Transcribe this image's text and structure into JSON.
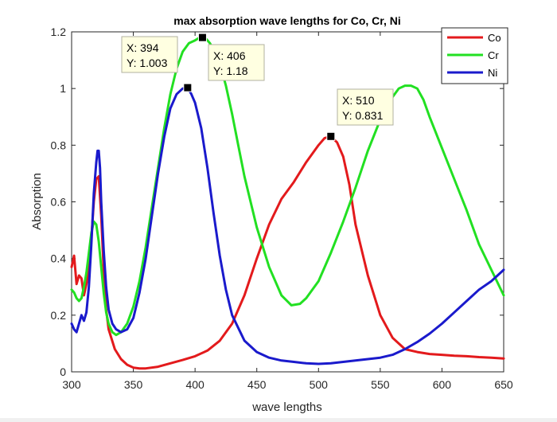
{
  "chart_data": {
    "type": "line",
    "title": "max absorption wave lengths for Co, Cr, Ni",
    "xlabel": "wave lengths",
    "ylabel": "Absorption",
    "xlim": [
      300,
      650
    ],
    "ylim": [
      0,
      1.2
    ],
    "xticks": [
      300,
      350,
      400,
      450,
      500,
      550,
      600,
      650
    ],
    "xtick_labels": [
      "300",
      "350",
      "400",
      "450",
      "500",
      "550",
      "600",
      "650"
    ],
    "yticks": [
      0,
      0.2,
      0.4,
      0.6,
      0.8,
      1.0,
      1.2
    ],
    "ytick_labels": [
      "0",
      "0.2",
      "0.4",
      "0.6",
      "0.8",
      "1",
      "1.2"
    ],
    "grid": false,
    "legend_position": "top-right",
    "series": [
      {
        "name": "Co",
        "color": "#e31a1c",
        "x": [
          300,
          302,
          304,
          306,
          308,
          310,
          312,
          314,
          316,
          318,
          320,
          322,
          324,
          326,
          328,
          330,
          335,
          340,
          345,
          350,
          355,
          360,
          370,
          380,
          390,
          400,
          410,
          420,
          430,
          440,
          450,
          460,
          470,
          480,
          490,
          500,
          505,
          510,
          515,
          520,
          525,
          530,
          540,
          550,
          560,
          570,
          580,
          590,
          600,
          610,
          620,
          630,
          640,
          650
        ],
        "y": [
          0.37,
          0.41,
          0.31,
          0.34,
          0.33,
          0.27,
          0.31,
          0.36,
          0.47,
          0.6,
          0.68,
          0.69,
          0.55,
          0.36,
          0.22,
          0.15,
          0.08,
          0.045,
          0.025,
          0.015,
          0.012,
          0.012,
          0.018,
          0.03,
          0.042,
          0.055,
          0.075,
          0.11,
          0.17,
          0.27,
          0.4,
          0.52,
          0.61,
          0.67,
          0.74,
          0.8,
          0.825,
          0.831,
          0.81,
          0.76,
          0.66,
          0.52,
          0.34,
          0.2,
          0.12,
          0.08,
          0.07,
          0.063,
          0.06,
          0.057,
          0.055,
          0.052,
          0.05,
          0.047
        ]
      },
      {
        "name": "Cr",
        "color": "#22e022",
        "x": [
          300,
          302,
          304,
          306,
          308,
          310,
          312,
          314,
          316,
          318,
          320,
          322,
          324,
          326,
          328,
          330,
          333,
          336,
          340,
          345,
          350,
          355,
          360,
          365,
          370,
          375,
          380,
          385,
          390,
          395,
          400,
          403,
          406,
          409,
          412,
          416,
          420,
          425,
          430,
          435,
          440,
          450,
          460,
          470,
          478,
          485,
          490,
          500,
          510,
          520,
          530,
          540,
          550,
          560,
          565,
          570,
          575,
          580,
          585,
          590,
          600,
          610,
          620,
          630,
          640,
          650
        ],
        "y": [
          0.29,
          0.28,
          0.26,
          0.25,
          0.26,
          0.3,
          0.35,
          0.42,
          0.49,
          0.53,
          0.52,
          0.46,
          0.37,
          0.28,
          0.21,
          0.17,
          0.14,
          0.13,
          0.14,
          0.17,
          0.23,
          0.32,
          0.44,
          0.58,
          0.72,
          0.86,
          0.98,
          1.07,
          1.13,
          1.16,
          1.17,
          1.178,
          1.18,
          1.175,
          1.16,
          1.13,
          1.09,
          1.01,
          0.91,
          0.8,
          0.69,
          0.51,
          0.37,
          0.27,
          0.235,
          0.24,
          0.26,
          0.32,
          0.42,
          0.53,
          0.65,
          0.78,
          0.89,
          0.97,
          1.0,
          1.01,
          1.01,
          1.0,
          0.96,
          0.9,
          0.79,
          0.68,
          0.57,
          0.45,
          0.36,
          0.27
        ]
      },
      {
        "name": "Ni",
        "color": "#1a1acc",
        "x": [
          300,
          302,
          304,
          306,
          308,
          310,
          312,
          314,
          316,
          318,
          320,
          321,
          322,
          323,
          324,
          326,
          328,
          330,
          333,
          336,
          340,
          345,
          350,
          355,
          360,
          365,
          370,
          375,
          380,
          385,
          390,
          394,
          397,
          400,
          405,
          410,
          415,
          420,
          425,
          430,
          440,
          450,
          460,
          470,
          480,
          490,
          500,
          510,
          520,
          530,
          540,
          550,
          560,
          570,
          580,
          590,
          600,
          610,
          620,
          630,
          640,
          650
        ],
        "y": [
          0.17,
          0.15,
          0.14,
          0.17,
          0.2,
          0.18,
          0.21,
          0.3,
          0.45,
          0.63,
          0.74,
          0.78,
          0.78,
          0.72,
          0.6,
          0.43,
          0.3,
          0.22,
          0.17,
          0.15,
          0.14,
          0.15,
          0.19,
          0.28,
          0.4,
          0.55,
          0.7,
          0.83,
          0.93,
          0.98,
          1.0,
          1.003,
          0.98,
          0.95,
          0.86,
          0.72,
          0.56,
          0.41,
          0.29,
          0.2,
          0.11,
          0.07,
          0.05,
          0.04,
          0.035,
          0.03,
          0.028,
          0.03,
          0.035,
          0.04,
          0.045,
          0.05,
          0.06,
          0.08,
          0.105,
          0.135,
          0.17,
          0.21,
          0.25,
          0.29,
          0.32,
          0.36
        ]
      }
    ],
    "annotations": [
      {
        "x": 394,
        "y": 1.003,
        "line1": "X: 394",
        "line2": "Y: 1.003"
      },
      {
        "x": 406,
        "y": 1.18,
        "line1": "X: 406",
        "line2": "Y: 1.18"
      },
      {
        "x": 510,
        "y": 0.831,
        "line1": "X: 510",
        "line2": "Y: 0.831"
      }
    ]
  }
}
